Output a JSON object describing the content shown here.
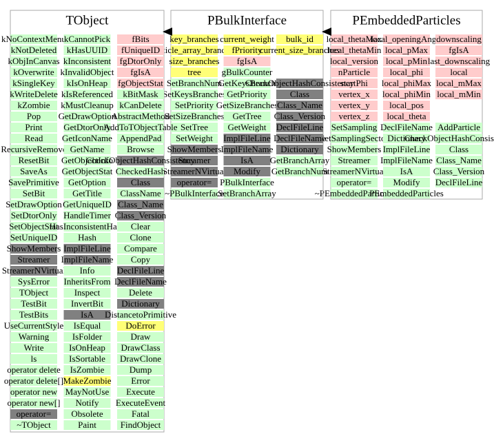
{
  "classes": [
    {
      "title": "TObject",
      "columns": [
        {
          "items": [
            "kNoContextMenu",
            "kNotDeleted",
            "kObjInCanvas",
            "kOverwrite",
            "kSingleKey",
            "kWriteDelete",
            "kZombie",
            "Pop",
            "Print",
            "Read",
            "RecursiveRemove",
            "ResetBit",
            "SaveAs",
            "SavePrimitive",
            "SetBit",
            "SetDrawOption",
            "SetDtorOnly",
            "SetObjectStat",
            "SetUniqueID",
            "ShowMembers",
            "Streamer",
            "StreamerNVirtual",
            "SysError",
            "TObject",
            "TestBit",
            "TestBits",
            "UseCurrentStyle",
            "Warning",
            "Write",
            "ls",
            "operator delete",
            "operator delete[]",
            "operator new",
            "operator new[]",
            "operator=",
            "~TObject"
          ],
          "colors": [
            "#ccffcc",
            "#ccffcc",
            "#ccffcc",
            "#ccffcc",
            "#ccffcc",
            "#ccffcc",
            "#ccffcc",
            "#ccffcc",
            "#ccffcc",
            "#ccffcc",
            "#ccffcc",
            "#ccffcc",
            "#ccffcc",
            "#ccffcc",
            "#ccffcc",
            "#ccffcc",
            "#ccffcc",
            "#ccffcc",
            "#ccffcc",
            "#808080",
            "#808080",
            "#808080",
            "#ccffcc",
            "#ccffcc",
            "#ccffcc",
            "#ccffcc",
            "#ccffcc",
            "#ccffcc",
            "#ccffcc",
            "#ccffcc",
            "#ccffcc",
            "#ccffcc",
            "#ccffcc",
            "#ccffcc",
            "#808080",
            "#ccffcc"
          ]
        },
        {
          "items": [
            "kCannotPick",
            "kHasUUID",
            "kInconsistent",
            "kInvalidObject",
            "kIsOnHeap",
            "kIsReferenced",
            "kMustCleanup",
            "GetDrawOption",
            "GetDtorOnly",
            "GetIconName",
            "GetName",
            "GetObjectInfo",
            "GetObjectStat",
            "GetOption",
            "GetTitle",
            "GetUniqueID",
            "HandleTimer",
            "HasInconsistentHash",
            "Hash",
            "ImplFileLine",
            "ImplFileName",
            "Info",
            "InheritsFrom",
            "Inspect",
            "InvertBit",
            "IsA",
            "IsEqual",
            "IsFolder",
            "IsOnHeap",
            "IsSortable",
            "IsZombie",
            "MakeZombie",
            "MayNotUse",
            "Notify",
            "Obsolete",
            "Paint"
          ],
          "colors": [
            "#ccffcc",
            "#ccffcc",
            "#ccffcc",
            "#ccffcc",
            "#ccffcc",
            "#ccffcc",
            "#ccffcc",
            "#ccffcc",
            "#ccffcc",
            "#ccffcc",
            "#ccffcc",
            "#ccffcc",
            "#ccffcc",
            "#ccffcc",
            "#ccffcc",
            "#ccffcc",
            "#ccffcc",
            "#ccffcc",
            "#ccffcc",
            "#808080",
            "#808080",
            "#ccffcc",
            "#ccffcc",
            "#ccffcc",
            "#ccffcc",
            "#808080",
            "#ccffcc",
            "#ccffcc",
            "#ccffcc",
            "#ccffcc",
            "#ccffcc",
            "#ffff77",
            "#ccffcc",
            "#ccffcc",
            "#ccffcc",
            "#ccffcc"
          ]
        },
        {
          "items": [
            "fBits",
            "fUniqueID",
            "fgDtorOnly",
            "fgIsA",
            "fgObjectStat",
            "kBitMask",
            "kCanDelete",
            "AbstractMethod",
            "AddToTObjectTable",
            "AppendPad",
            "Browse",
            "CheckObjectHashConsistency",
            "CheckedHash",
            "Class",
            "ClassName",
            "Class_Name",
            "Class_Version",
            "Clear",
            "Clone",
            "Compare",
            "Copy",
            "DeclFileLine",
            "DeclFileName",
            "Delete",
            "Dictionary",
            "DistancetoPrimitive",
            "DoError",
            "Draw",
            "DrawClass",
            "DrawClone",
            "Dump",
            "Error",
            "Execute",
            "ExecuteEvent",
            "Fatal",
            "FindObject"
          ],
          "colors": [
            "#ffcccc",
            "#ffcccc",
            "#ffcccc",
            "#ffcccc",
            "#ffcccc",
            "#ccffcc",
            "#ccffcc",
            "#ccffcc",
            "#ccffcc",
            "#ccffcc",
            "#ccffcc",
            "#808080",
            "#ccffcc",
            "#808080",
            "#ccffcc",
            "#808080",
            "#808080",
            "#ccffcc",
            "#ccffcc",
            "#ccffcc",
            "#ccffcc",
            "#808080",
            "#808080",
            "#ccffcc",
            "#808080",
            "#ccffcc",
            "#ffff77",
            "#ccffcc",
            "#ccffcc",
            "#ccffcc",
            "#ccffcc",
            "#ccffcc",
            "#ccffcc",
            "#ccffcc",
            "#ccffcc",
            "#ccffcc"
          ]
        }
      ]
    },
    {
      "title": "PBulkInterface",
      "columns": [
        {
          "items": [
            "key_branches",
            "particle_array_branches",
            "size_branches",
            "tree",
            "SetBranchNum",
            "SetKeysBranches",
            "SetPriority",
            "SetSizeBranches",
            "SetTree",
            "SetWeight",
            "ShowMembers",
            "Streamer",
            "StreamerNVirtual",
            "operator=",
            "~PBulkInterface"
          ],
          "colors": [
            "#ffff77",
            "#ffff77",
            "#ffff77",
            "#ffff77",
            "#ccffcc",
            "#ccffcc",
            "#ccffcc",
            "#ccffcc",
            "#ccffcc",
            "#ccffcc",
            "#808080",
            "#808080",
            "#808080",
            "#808080",
            "#ccffcc"
          ]
        },
        {
          "items": [
            "current_weight",
            "fPriority",
            "fgIsA",
            "gBulkCounter",
            "GetKeysBranch",
            "GetPriority",
            "GetSizeBranches",
            "GetTree",
            "GetWeight",
            "ImplFileLine",
            "ImplFileName",
            "IsA",
            "Modify",
            "PBulkInterface",
            "SetBranchArray"
          ],
          "colors": [
            "#ffff77",
            "#ffff77",
            "#ffcccc",
            "#ccffcc",
            "#ccffcc",
            "#ccffcc",
            "#ccffcc",
            "#ccffcc",
            "#ccffcc",
            "#808080",
            "#808080",
            "#808080",
            "#808080",
            "#ccffcc",
            "#ccffcc"
          ]
        },
        {
          "items": [
            "bulk_id",
            "current_size_branches",
            null,
            null,
            "CheckObjectHashConsistency",
            "Class",
            "Class_Name",
            "Class_Version",
            "DeclFileLine",
            "DeclFileName",
            "Dictionary",
            "GetBranchArray",
            "GetBranchNum"
          ],
          "colors": [
            "#ffff77",
            "#ffff77",
            null,
            null,
            "#808080",
            "#808080",
            "#808080",
            "#808080",
            "#808080",
            "#808080",
            "#808080",
            "#ccffcc",
            "#ccffcc"
          ]
        }
      ]
    },
    {
      "title": "PEmbeddedParticles",
      "columns": [
        {
          "items": [
            "local_thetaMax",
            "local_thetaMin",
            "local_version",
            "nParticle",
            "startPhi",
            "vertex_x",
            "vertex_y",
            "vertex_z",
            "SetSampling",
            "SetSamplingSector",
            "ShowMembers",
            "Streamer",
            "StreamerNVirtual",
            "operator=",
            "~PEmbeddedParticles"
          ],
          "colors": [
            "#ffcccc",
            "#ffcccc",
            "#ffcccc",
            "#ffcccc",
            "#ffcccc",
            "#ffcccc",
            "#ffcccc",
            "#ffcccc",
            "#ccffcc",
            "#ccffcc",
            "#ccffcc",
            "#ccffcc",
            "#ccffcc",
            "#ccffcc",
            "#ccffcc"
          ]
        },
        {
          "items": [
            "local_openingAngle",
            "local_pMax",
            "local_pMin",
            "local_phi",
            "local_phiMax",
            "local_phiMin",
            "local_pos",
            "local_theta",
            "DeclFileName",
            "Dictionary",
            "ImplFileLine",
            "ImplFileName",
            "IsA",
            "Modify",
            "PEmbeddedParticles"
          ],
          "colors": [
            "#ffcccc",
            "#ffcccc",
            "#ffcccc",
            "#ffcccc",
            "#ffcccc",
            "#ffcccc",
            "#ffcccc",
            "#ffcccc",
            "#ccffcc",
            "#ccffcc",
            "#ccffcc",
            "#ccffcc",
            "#ccffcc",
            "#ccffcc",
            "#ccffcc"
          ]
        },
        {
          "items": [
            "downscaling",
            "fgIsA",
            "last_downscaling",
            "local",
            "local_mMax",
            "local_mMin",
            null,
            null,
            "AddParticle",
            "CheckObjectHashConsistency",
            "Class",
            "Class_Name",
            "Class_Version",
            "DeclFileLine"
          ],
          "colors": [
            "#ffcccc",
            "#ffcccc",
            "#ffcccc",
            "#ffcccc",
            "#ffcccc",
            "#ffcccc",
            null,
            null,
            "#ccffcc",
            "#ccffcc",
            "#ccffcc",
            "#ccffcc",
            "#ccffcc",
            "#ccffcc"
          ]
        }
      ]
    }
  ]
}
